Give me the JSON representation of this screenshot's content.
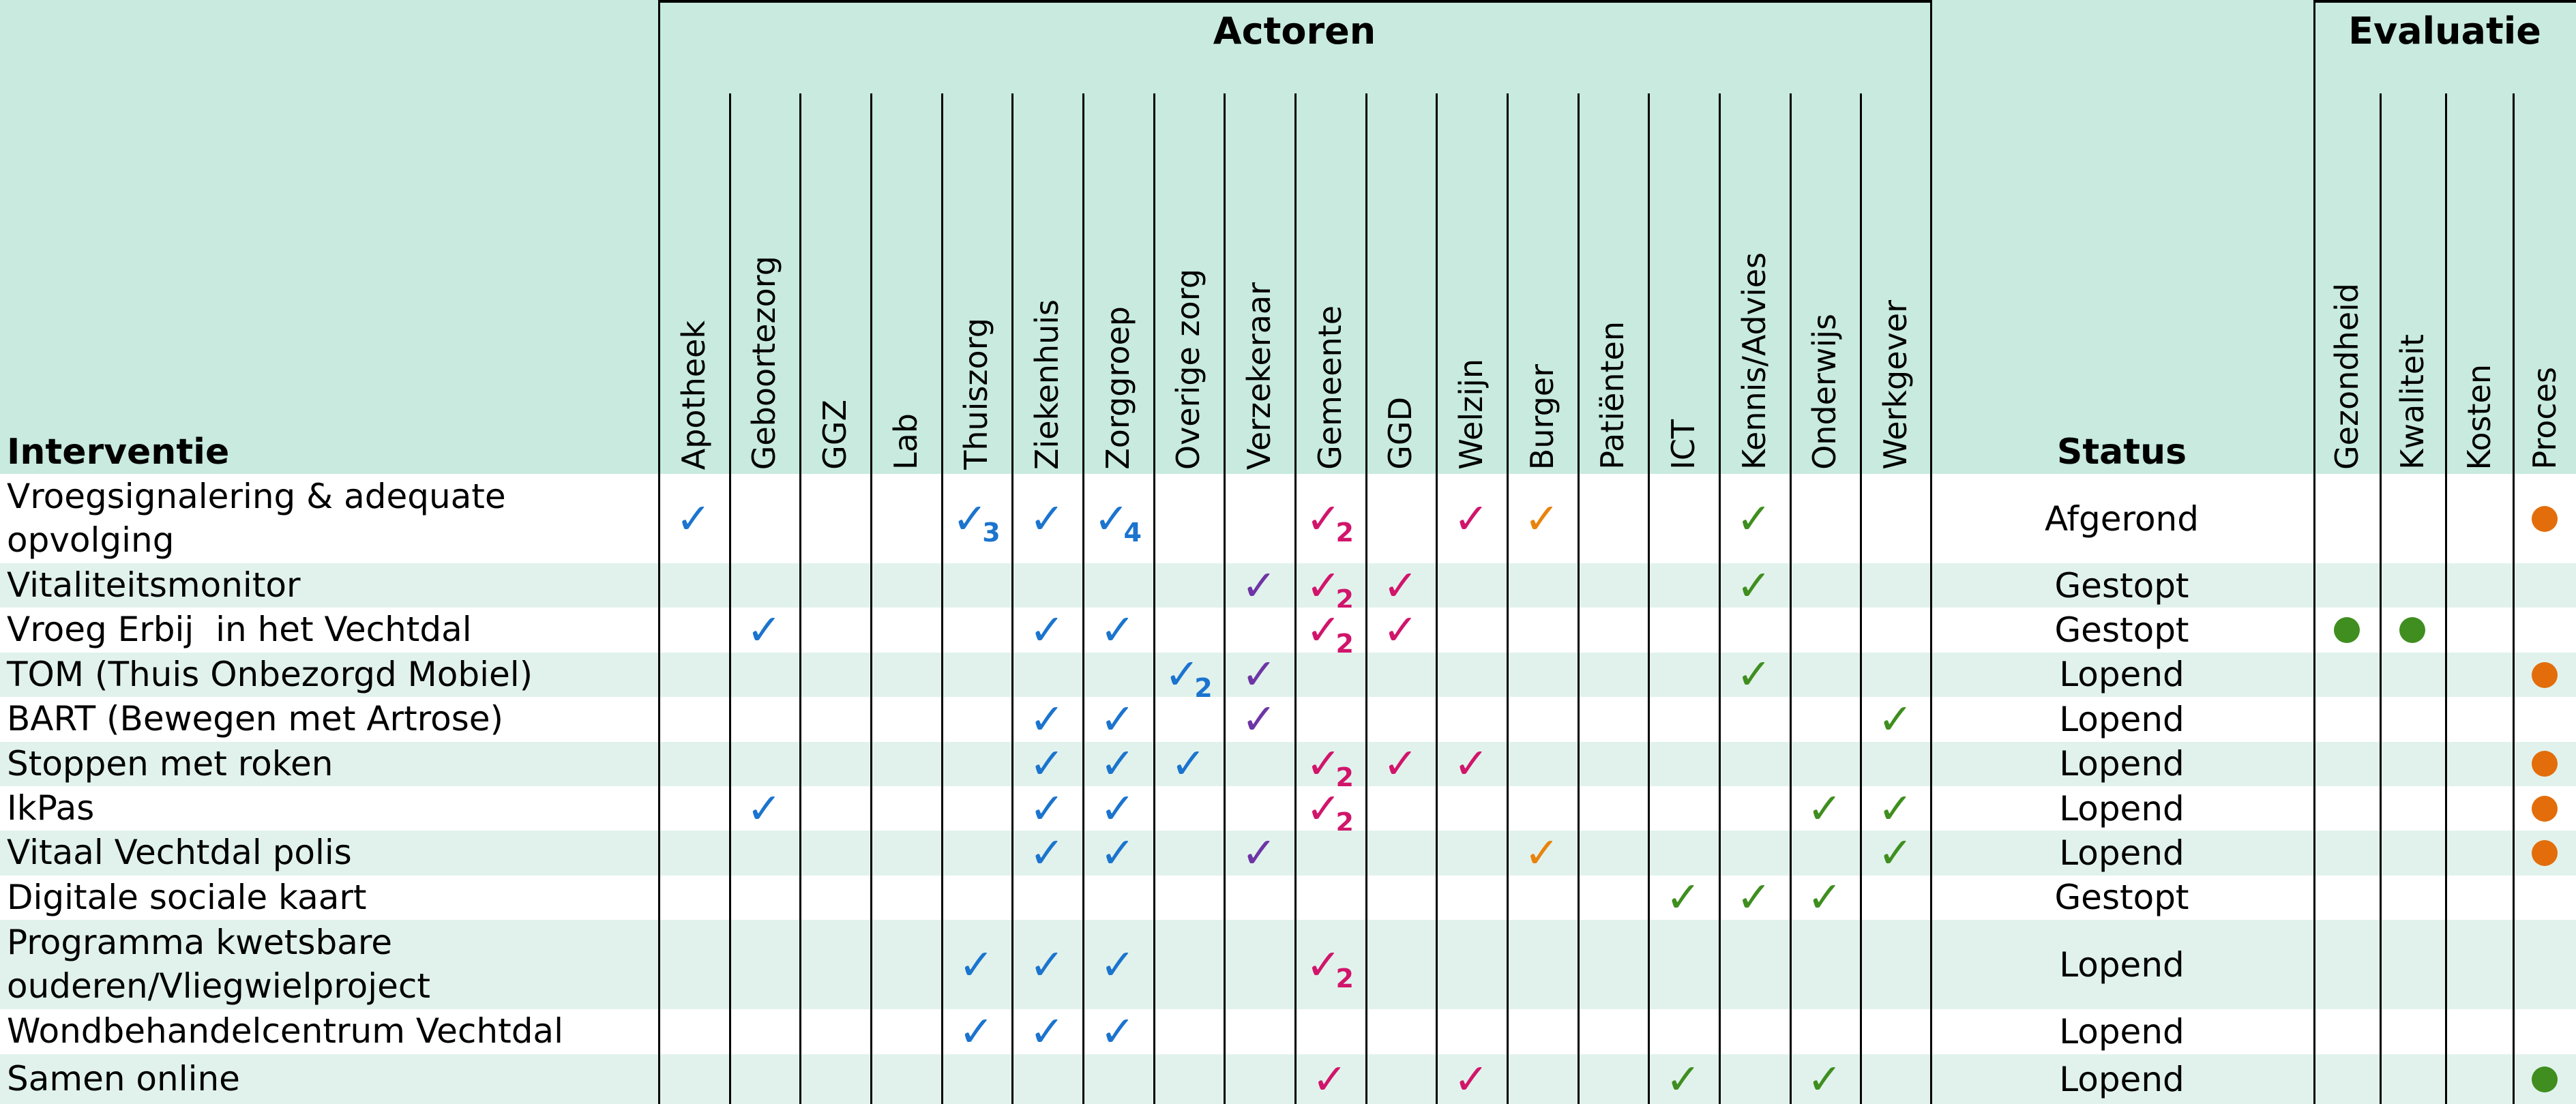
{
  "header": {
    "interventie": "Interventie",
    "actoren": "Actoren",
    "status": "Status",
    "evaluatie": "Evaluatie",
    "actor_columns": [
      "Apotheek",
      "Geboortezorg",
      "GGZ",
      "Lab",
      "Thuiszorg",
      "Ziekenhuis",
      "Zorggroep",
      "Overige zorg",
      "Verzekeraar",
      "Gemeente",
      "GGD",
      "Welzijn",
      "Burger",
      "Patiënten",
      "ICT",
      "Kennis/Advies",
      "Onderwijs",
      "Werkgever"
    ],
    "evaluatie_columns": [
      "Gezondheid",
      "Kwaliteit",
      "Kosten",
      "Proces"
    ]
  },
  "icons": {
    "check_glyph": "✓"
  },
  "colors": {
    "header_bg": "#c8eadf",
    "row_bg": "#ffffff",
    "row_alt_bg": "#e1f2ec",
    "grid_line": "#000000",
    "text": "#000000",
    "blue": "#1b74ce",
    "pink": "#d1156b",
    "purple": "#6e35a5",
    "orange": "#e8830d",
    "green": "#3f8e1f",
    "dot_orange": "#e36d0a",
    "dot_green": "#3f8e1f"
  },
  "rows": [
    {
      "name": "Vroegsignalering & adequate opvolging",
      "status": "Afgerond",
      "checks": [
        {
          "col": "Apotheek",
          "color": "blue"
        },
        {
          "col": "Thuiszorg",
          "color": "blue",
          "sub": "3"
        },
        {
          "col": "Ziekenhuis",
          "color": "blue"
        },
        {
          "col": "Zorggroep",
          "color": "blue",
          "sub": "4"
        },
        {
          "col": "Gemeente",
          "color": "pink",
          "sub": "2"
        },
        {
          "col": "Welzijn",
          "color": "pink"
        },
        {
          "col": "Burger",
          "color": "orange"
        },
        {
          "col": "Kennis/Advies",
          "color": "green"
        }
      ],
      "dots": [
        {
          "col": "Proces",
          "color": "dot_orange"
        }
      ]
    },
    {
      "name": "Vitaliteitsmonitor",
      "status": "Gestopt",
      "checks": [
        {
          "col": "Verzekeraar",
          "color": "purple"
        },
        {
          "col": "Gemeente",
          "color": "pink",
          "sub": "2"
        },
        {
          "col": "GGD",
          "color": "pink"
        },
        {
          "col": "Kennis/Advies",
          "color": "green"
        }
      ],
      "dots": []
    },
    {
      "name": "Vroeg Erbij  in het Vechtdal",
      "status": "Gestopt",
      "checks": [
        {
          "col": "Geboortezorg",
          "color": "blue"
        },
        {
          "col": "Ziekenhuis",
          "color": "blue"
        },
        {
          "col": "Zorggroep",
          "color": "blue"
        },
        {
          "col": "Gemeente",
          "color": "pink",
          "sub": "2"
        },
        {
          "col": "GGD",
          "color": "pink"
        }
      ],
      "dots": [
        {
          "col": "Gezondheid",
          "color": "dot_green"
        },
        {
          "col": "Kwaliteit",
          "color": "dot_green"
        }
      ]
    },
    {
      "name": "TOM (Thuis Onbezorgd Mobiel)",
      "status": "Lopend",
      "checks": [
        {
          "col": "Overige zorg",
          "color": "blue",
          "sub": "2"
        },
        {
          "col": "Verzekeraar",
          "color": "purple"
        },
        {
          "col": "Kennis/Advies",
          "color": "green"
        }
      ],
      "dots": [
        {
          "col": "Proces",
          "color": "dot_orange"
        }
      ]
    },
    {
      "name": "BART (Bewegen met Artrose)",
      "status": "Lopend",
      "checks": [
        {
          "col": "Ziekenhuis",
          "color": "blue"
        },
        {
          "col": "Zorggroep",
          "color": "blue"
        },
        {
          "col": "Verzekeraar",
          "color": "purple"
        },
        {
          "col": "Werkgever",
          "color": "green"
        }
      ],
      "dots": []
    },
    {
      "name": "Stoppen met roken",
      "status": "Lopend",
      "checks": [
        {
          "col": "Ziekenhuis",
          "color": "blue"
        },
        {
          "col": "Zorggroep",
          "color": "blue"
        },
        {
          "col": "Overige zorg",
          "color": "blue"
        },
        {
          "col": "Gemeente",
          "color": "pink",
          "sub": "2"
        },
        {
          "col": "GGD",
          "color": "pink"
        },
        {
          "col": "Welzijn",
          "color": "pink"
        }
      ],
      "dots": [
        {
          "col": "Proces",
          "color": "dot_orange"
        }
      ]
    },
    {
      "name": "IkPas",
      "status": "Lopend",
      "checks": [
        {
          "col": "Geboortezorg",
          "color": "blue"
        },
        {
          "col": "Ziekenhuis",
          "color": "blue"
        },
        {
          "col": "Zorggroep",
          "color": "blue"
        },
        {
          "col": "Gemeente",
          "color": "pink",
          "sub": "2"
        },
        {
          "col": "Onderwijs",
          "color": "green"
        },
        {
          "col": "Werkgever",
          "color": "green"
        }
      ],
      "dots": [
        {
          "col": "Proces",
          "color": "dot_orange"
        }
      ]
    },
    {
      "name": "Vitaal Vechtdal polis",
      "status": "Lopend",
      "checks": [
        {
          "col": "Ziekenhuis",
          "color": "blue"
        },
        {
          "col": "Zorggroep",
          "color": "blue"
        },
        {
          "col": "Verzekeraar",
          "color": "purple"
        },
        {
          "col": "Burger",
          "color": "orange"
        },
        {
          "col": "Werkgever",
          "color": "green"
        }
      ],
      "dots": [
        {
          "col": "Proces",
          "color": "dot_orange"
        }
      ]
    },
    {
      "name": "Digitale sociale kaart",
      "status": "Gestopt",
      "checks": [
        {
          "col": "ICT",
          "color": "green"
        },
        {
          "col": "Kennis/Advies",
          "color": "green"
        },
        {
          "col": "Onderwijs",
          "color": "green"
        }
      ],
      "dots": []
    },
    {
      "name": "Programma kwetsbare ouderen/Vliegwielproject",
      "status": "Lopend",
      "checks": [
        {
          "col": "Thuiszorg",
          "color": "blue"
        },
        {
          "col": "Ziekenhuis",
          "color": "blue"
        },
        {
          "col": "Zorggroep",
          "color": "blue"
        },
        {
          "col": "Gemeente",
          "color": "pink",
          "sub": "2"
        }
      ],
      "dots": []
    },
    {
      "name": "Wondbehandelcentrum Vechtdal",
      "status": "Lopend",
      "checks": [
        {
          "col": "Thuiszorg",
          "color": "blue"
        },
        {
          "col": "Ziekenhuis",
          "color": "blue"
        },
        {
          "col": "Zorggroep",
          "color": "blue"
        }
      ],
      "dots": []
    },
    {
      "name": "Samen online",
      "status": "Lopend",
      "checks": [
        {
          "col": "Gemeente",
          "color": "pink"
        },
        {
          "col": "Welzijn",
          "color": "pink"
        },
        {
          "col": "ICT",
          "color": "green"
        },
        {
          "col": "Onderwijs",
          "color": "green"
        }
      ],
      "dots": [
        {
          "col": "Proces",
          "color": "dot_green"
        }
      ]
    }
  ]
}
